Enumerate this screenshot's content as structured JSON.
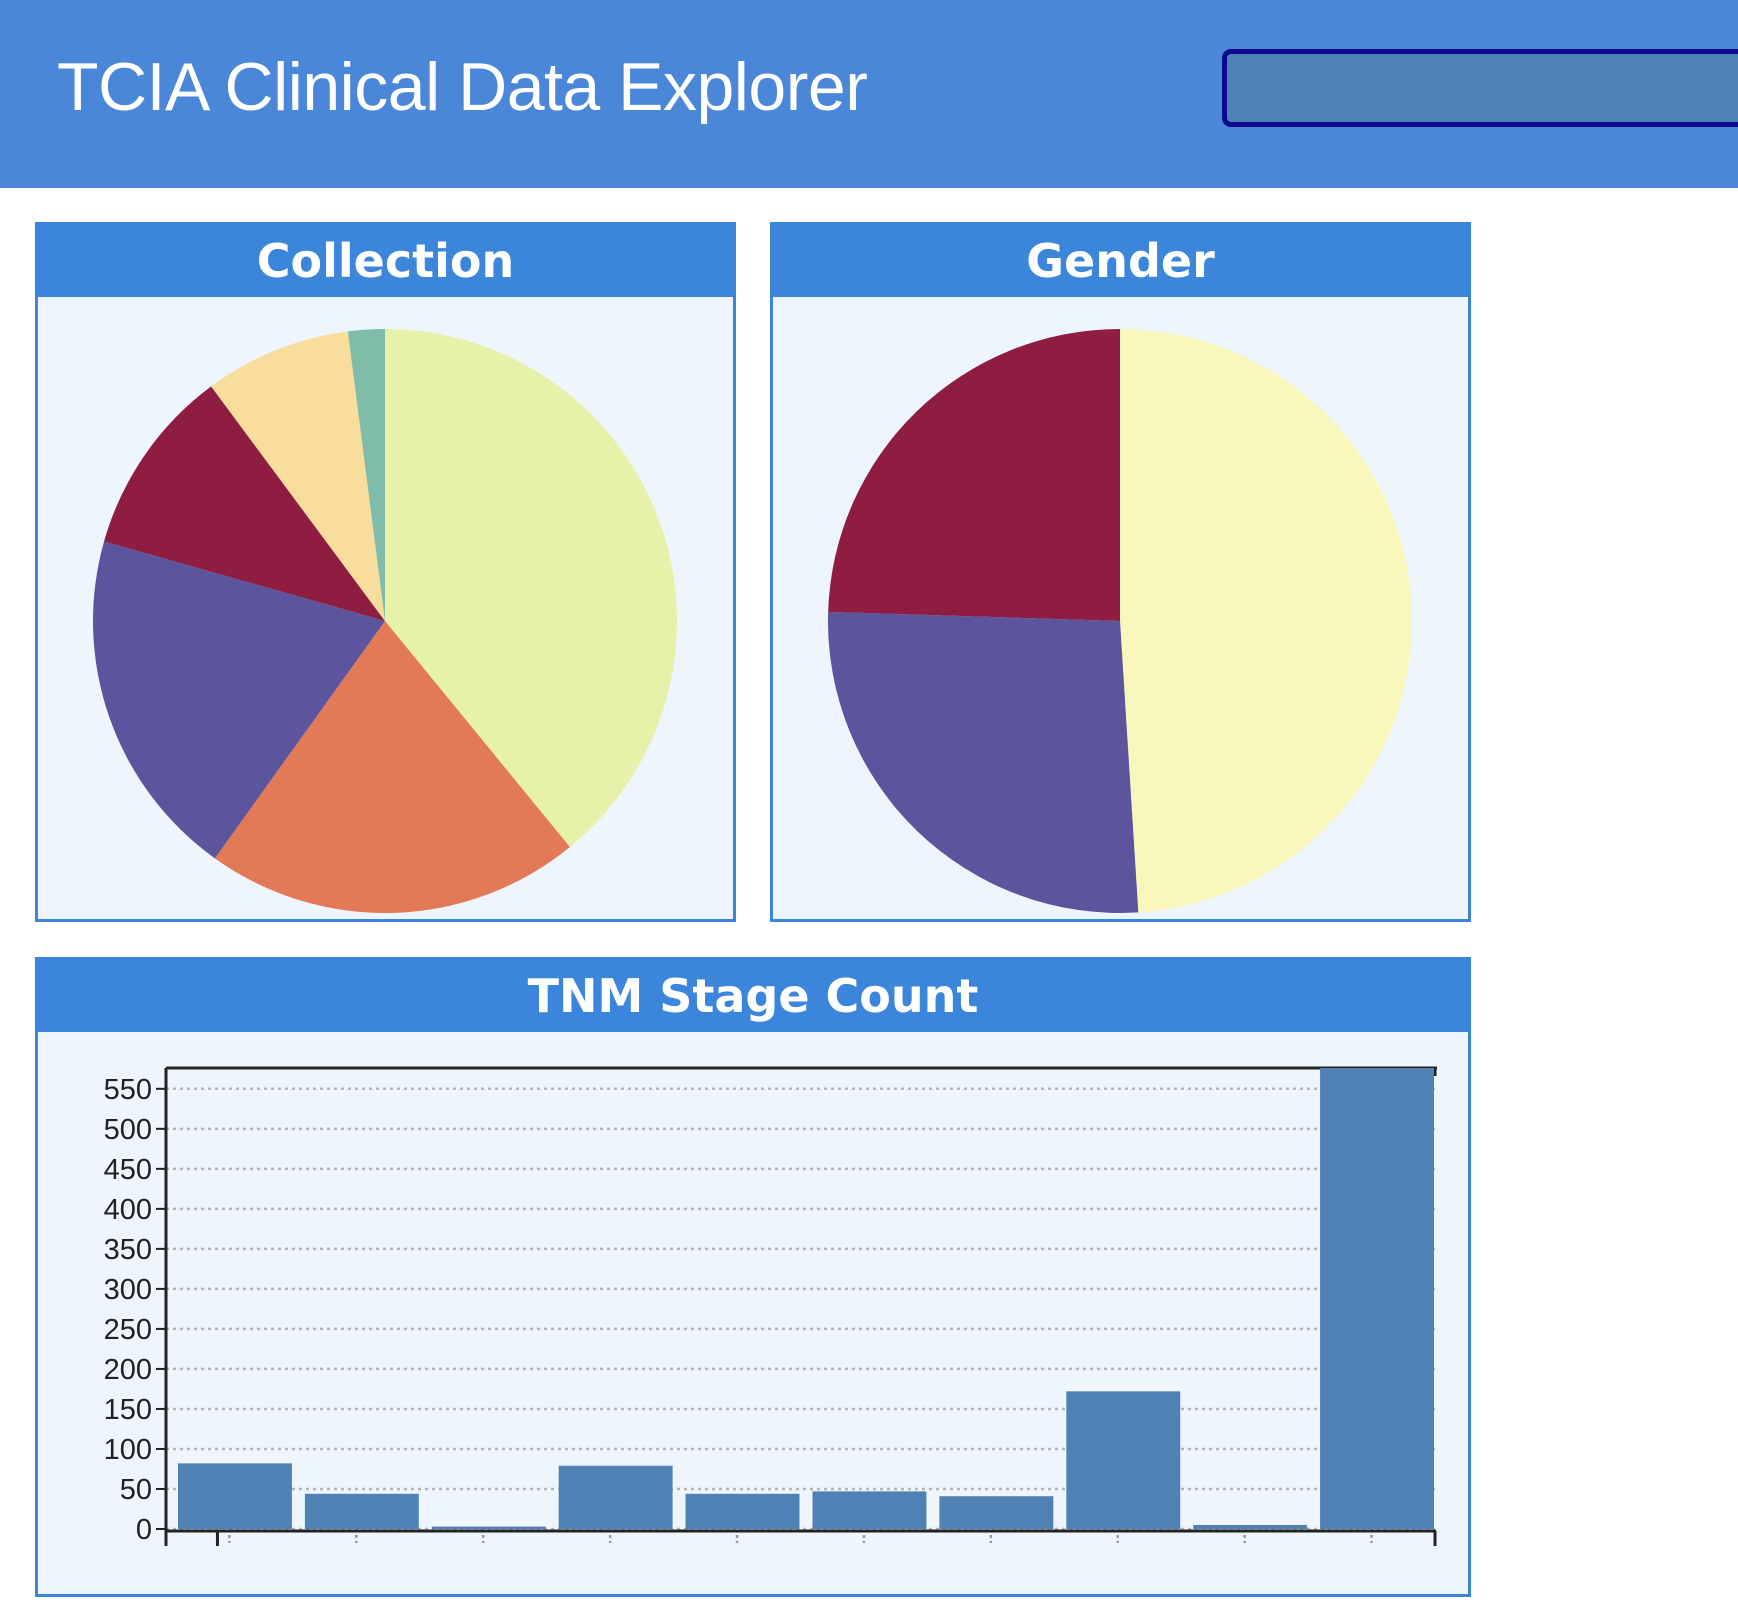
{
  "header": {
    "title": "TCIA Clinical Data Explorer"
  },
  "panels": {
    "collection": {
      "title": "Collection"
    },
    "gender": {
      "title": "Gender"
    },
    "stage": {
      "title": "TNM Stage Count"
    }
  },
  "colors": {
    "header_bg": "#4a87d8",
    "panel_accent": "#3b85db",
    "bar_fill": "#5081b4"
  },
  "chart_data": [
    {
      "type": "pie",
      "title": "Collection",
      "values": [
        38.5,
        20.5,
        19.2,
        10.3,
        8.0,
        2.0
      ],
      "colors": [
        "#e6f2a9",
        "#e27957",
        "#5c549c",
        "#8f1d42",
        "#f9dd9c",
        "#7fbca9"
      ]
    },
    {
      "type": "pie",
      "title": "Gender",
      "values": [
        49.0,
        26.5,
        24.5
      ],
      "colors": [
        "#faf7bc",
        "#5c549c",
        "#8f1d42"
      ]
    },
    {
      "type": "bar",
      "title": "TNM Stage Count",
      "values": [
        82,
        44,
        3,
        79,
        44,
        47,
        41,
        172,
        5,
        576
      ],
      "yticks": [
        0,
        50,
        100,
        150,
        200,
        250,
        300,
        350,
        400,
        450,
        500,
        550
      ],
      "ylim": [
        0,
        576
      ],
      "grid": true
    }
  ]
}
